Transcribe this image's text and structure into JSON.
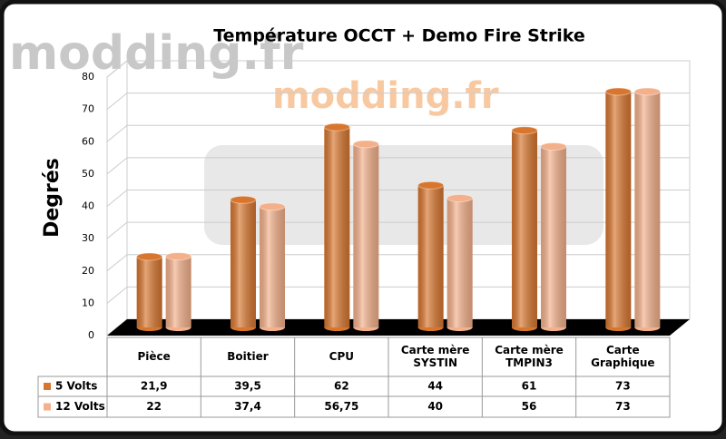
{
  "chart_data": {
    "type": "bar",
    "title": "Température OCCT + Demo Fire Strike",
    "watermark": "modding.fr",
    "y_label": "Degrés",
    "categories": [
      "Pièce",
      "Boitier",
      "CPU",
      "Carte mère SYSTIN",
      "Carte mère TMPIN3",
      "Carte Graphique"
    ],
    "series": [
      {
        "name": "5 Volts",
        "color": "#d8762e",
        "values": [
          21.9,
          39.5,
          62,
          44,
          61,
          73
        ],
        "value_labels": [
          "21,9",
          "39,5",
          "62",
          "44",
          "61",
          "73"
        ]
      },
      {
        "name": "12 Volts",
        "color": "#f4b08a",
        "values": [
          22,
          37.4,
          56.75,
          40,
          56,
          73
        ],
        "value_labels": [
          "22",
          "37,4",
          "56,75",
          "40",
          "56",
          "73"
        ]
      }
    ],
    "ylim": [
      0,
      80
    ],
    "yticks": [
      0,
      10,
      20,
      30,
      40,
      50,
      60,
      70,
      80
    ],
    "grid": true
  }
}
